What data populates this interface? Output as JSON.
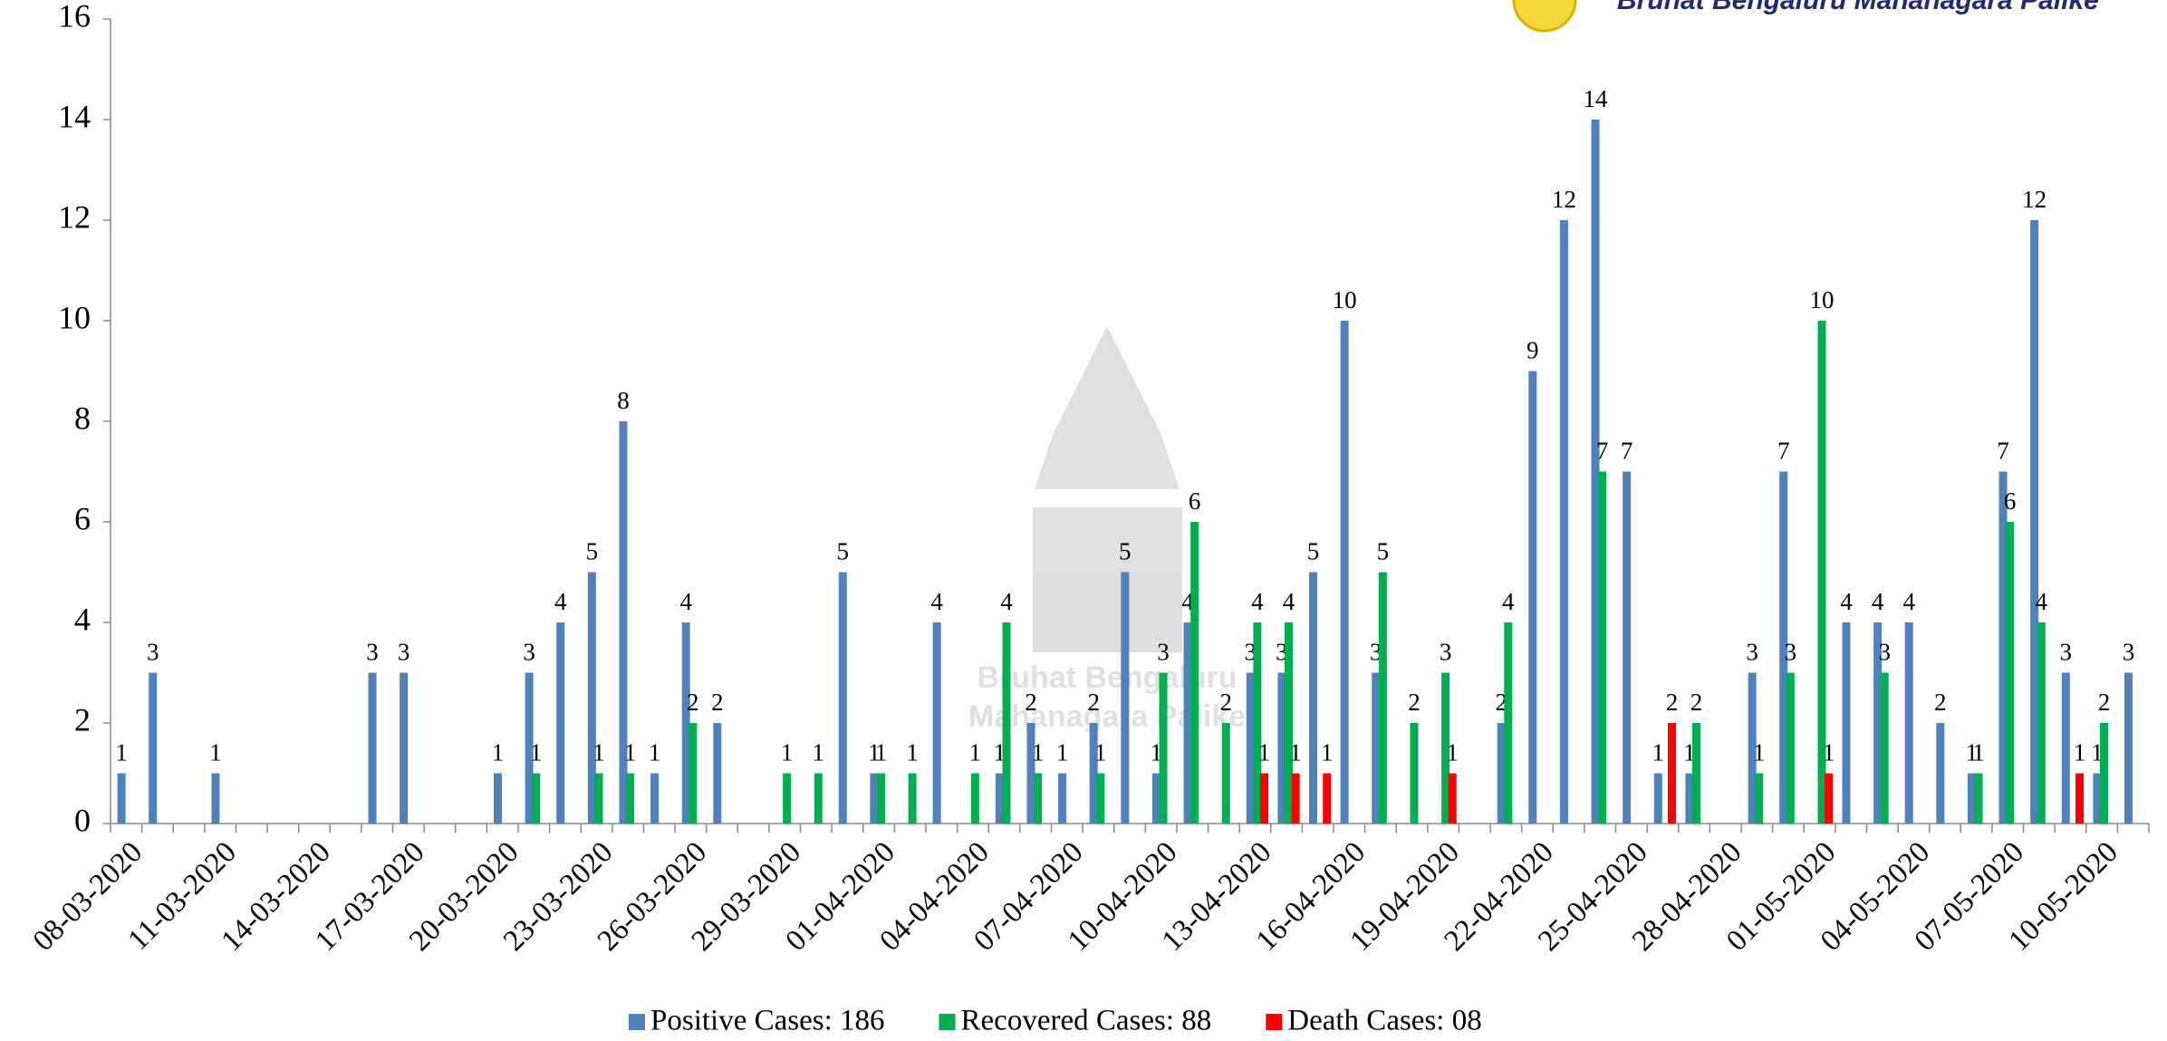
{
  "chart_data": {
    "type": "bar",
    "logo_text": "Bruhat Bengaluru Mahanagara Palike",
    "watermark": [
      "Bruhat Bengaluru",
      "Mahanagara Palike"
    ],
    "categories": [
      "08-03-2020",
      null,
      null,
      "11-03-2020",
      null,
      null,
      "14-03-2020",
      null,
      null,
      "17-03-2020",
      null,
      null,
      "20-03-2020",
      null,
      null,
      "23-03-2020",
      null,
      null,
      "26-03-2020",
      null,
      null,
      "29-03-2020",
      null,
      null,
      "01-04-2020",
      null,
      null,
      "04-04-2020",
      null,
      null,
      "07-04-2020",
      null,
      null,
      "10-04-2020",
      null,
      null,
      "13-04-2020",
      null,
      null,
      "16-04-2020",
      null,
      null,
      "19-04-2020",
      null,
      null,
      "22-04-2020",
      null,
      null,
      "25-04-2020",
      null,
      null,
      "28-04-2020",
      null,
      null,
      "01-05-2020",
      null,
      null,
      "04-05-2020",
      null,
      null,
      "07-05-2020",
      null,
      null,
      "10-05-2020",
      null
    ],
    "series": [
      {
        "name": "Positive Cases: 186",
        "color": "#4f81bd",
        "values": [
          1,
          3,
          null,
          1,
          null,
          null,
          null,
          null,
          3,
          3,
          null,
          null,
          1,
          3,
          4,
          5,
          8,
          1,
          4,
          2,
          null,
          null,
          null,
          5,
          1,
          null,
          4,
          null,
          1,
          2,
          1,
          2,
          5,
          1,
          4,
          null,
          3,
          3,
          5,
          10,
          3,
          null,
          null,
          null,
          2,
          9,
          12,
          14,
          7,
          1,
          1,
          null,
          3,
          7,
          null,
          4,
          4,
          4,
          2,
          1,
          7,
          12,
          3,
          1,
          3
        ]
      },
      {
        "name": "Recovered Cases: 88",
        "color": "#00b050",
        "values": [
          null,
          null,
          null,
          null,
          null,
          null,
          null,
          null,
          null,
          null,
          null,
          null,
          null,
          1,
          null,
          1,
          1,
          null,
          2,
          null,
          null,
          1,
          1,
          null,
          1,
          1,
          null,
          1,
          4,
          1,
          null,
          1,
          null,
          3,
          6,
          2,
          4,
          4,
          null,
          null,
          5,
          2,
          3,
          null,
          4,
          null,
          null,
          7,
          null,
          null,
          2,
          null,
          1,
          3,
          10,
          null,
          3,
          null,
          null,
          1,
          6,
          4,
          null,
          2,
          null
        ]
      },
      {
        "name": "Death Cases: 08",
        "color": "#ff0000",
        "values": [
          null,
          null,
          null,
          null,
          null,
          null,
          null,
          null,
          null,
          null,
          null,
          null,
          null,
          null,
          null,
          null,
          null,
          null,
          null,
          null,
          null,
          null,
          null,
          null,
          null,
          null,
          null,
          null,
          null,
          null,
          null,
          null,
          null,
          null,
          null,
          null,
          1,
          1,
          1,
          null,
          null,
          null,
          1,
          null,
          null,
          null,
          null,
          null,
          null,
          2,
          null,
          null,
          null,
          null,
          1,
          null,
          null,
          null,
          null,
          null,
          null,
          null,
          1,
          null,
          null
        ]
      }
    ],
    "ylim": [
      0,
      16
    ],
    "yticks": [
      0,
      2,
      4,
      6,
      8,
      10,
      12,
      14,
      16
    ],
    "legend": "bottom"
  }
}
